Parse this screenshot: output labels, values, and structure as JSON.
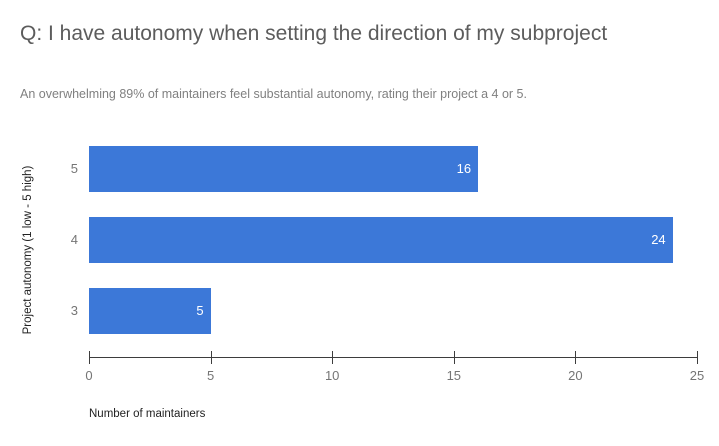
{
  "chart_data": {
    "type": "bar",
    "orientation": "horizontal",
    "title": "Q: I have autonomy when setting the direction of my subproject",
    "subtitle": "An overwhelming 89% of maintainers feel substantial autonomy, rating their project a 4 or 5.",
    "categories": [
      "5",
      "4",
      "3"
    ],
    "values": [
      16,
      24,
      5
    ],
    "xlabel": "Number of maintainers",
    "ylabel": "Project autonomy (1 low - 5 high)",
    "xlim": [
      0,
      25
    ],
    "xticks": [
      0,
      5,
      10,
      15,
      20,
      25
    ],
    "grid": false,
    "legend_position": "none",
    "colors": {
      "background": "#ffffff",
      "bar": "#3c78d8",
      "bar_value_label": "#ffffff",
      "title": "#5c5c5c",
      "subtitle": "#808080",
      "tick_label": "#757575",
      "category_label": "#757575",
      "axis_line": "#3d3d3d",
      "axis_title": "#222222"
    }
  }
}
